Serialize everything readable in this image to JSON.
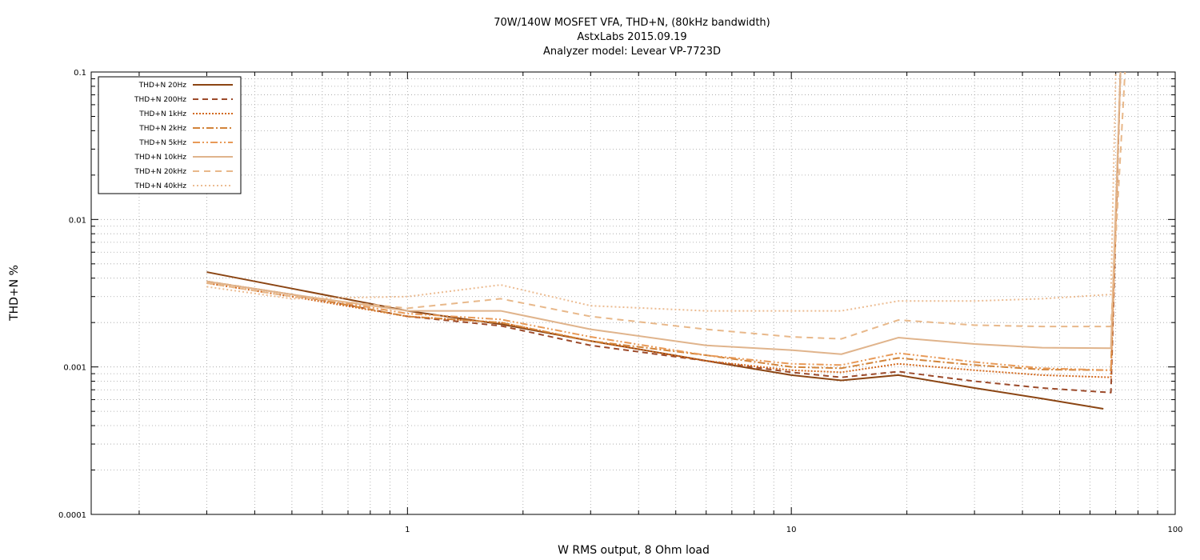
{
  "chart_data": {
    "type": "line",
    "title": [
      "70W/140W MOSFET VFA, THD+N, (80kHz bandwidth)",
      "AstxLabs 2015.09.19",
      "Analyzer model: Levear VP-7723D"
    ],
    "xlabel": "W RMS output, 8 Ohm load",
    "ylabel": "THD+N %",
    "xscale": "log",
    "yscale": "log",
    "xlim": [
      0.15,
      100
    ],
    "ylim": [
      0.0001,
      0.1
    ],
    "xticks": [
      {
        "v": 1,
        "label": "1"
      },
      {
        "v": 10,
        "label": "10"
      },
      {
        "v": 100,
        "label": "100"
      }
    ],
    "yticks": [
      {
        "v": 0.0001,
        "label": "0.0001"
      },
      {
        "v": 0.001,
        "label": "0.001"
      },
      {
        "v": 0.01,
        "label": "0.01"
      },
      {
        "v": 0.1,
        "label": "0.1"
      }
    ],
    "grid": true,
    "legend": "top-left",
    "series": [
      {
        "name": "THD+N 20Hz",
        "color": "#8b4513",
        "dash": "solid",
        "points": [
          [
            0.3,
            0.0044
          ],
          [
            0.5,
            0.0034
          ],
          [
            1,
            0.0024
          ],
          [
            1.75,
            0.00195
          ],
          [
            3,
            0.0015
          ],
          [
            6,
            0.0011
          ],
          [
            10,
            0.00088
          ],
          [
            13.5,
            0.00081
          ],
          [
            19,
            0.00088
          ],
          [
            30,
            0.00072
          ],
          [
            45,
            0.00061
          ],
          [
            65,
            0.00052
          ]
        ]
      },
      {
        "name": "THD+N 200Hz",
        "color": "#9c4a2a",
        "dash": "7,5",
        "points": [
          [
            0.3,
            0.0038
          ],
          [
            0.5,
            0.0031
          ],
          [
            1,
            0.0022
          ],
          [
            1.75,
            0.0019
          ],
          [
            3,
            0.0014
          ],
          [
            6,
            0.0011
          ],
          [
            10,
            0.00092
          ],
          [
            13.5,
            0.00085
          ],
          [
            19,
            0.00093
          ],
          [
            30,
            0.0008
          ],
          [
            45,
            0.00072
          ],
          [
            68,
            0.00067
          ],
          [
            72,
            0.1
          ]
        ]
      },
      {
        "name": "THD+N 1kHz",
        "color": "#d2691e",
        "dash": "2,2",
        "points": [
          [
            0.3,
            0.0037
          ],
          [
            0.5,
            0.003
          ],
          [
            1,
            0.0022
          ],
          [
            1.75,
            0.002
          ],
          [
            3,
            0.0015
          ],
          [
            6,
            0.0011
          ],
          [
            10,
            0.00095
          ],
          [
            13.5,
            0.00092
          ],
          [
            19,
            0.00105
          ],
          [
            30,
            0.00095
          ],
          [
            45,
            0.00088
          ],
          [
            68,
            0.00085
          ],
          [
            72,
            0.1
          ]
        ]
      },
      {
        "name": "THD+N 2kHz",
        "color": "#d2843a",
        "dash": "9,3,2,3",
        "points": [
          [
            0.3,
            0.0038
          ],
          [
            0.5,
            0.0031
          ],
          [
            1,
            0.0022
          ],
          [
            1.75,
            0.002
          ],
          [
            3,
            0.0015
          ],
          [
            6,
            0.0012
          ],
          [
            10,
            0.001
          ],
          [
            13.5,
            0.00098
          ],
          [
            19,
            0.00115
          ],
          [
            30,
            0.00103
          ],
          [
            45,
            0.00096
          ],
          [
            68,
            0.00095
          ],
          [
            72,
            0.1
          ]
        ]
      },
      {
        "name": "THD+N 5kHz",
        "color": "#e89a58",
        "dash": "9,3,2,3,2,3",
        "points": [
          [
            0.3,
            0.0038
          ],
          [
            0.5,
            0.0031
          ],
          [
            1,
            0.0023
          ],
          [
            1.75,
            0.0021
          ],
          [
            3,
            0.0016
          ],
          [
            6,
            0.0012
          ],
          [
            10,
            0.00105
          ],
          [
            13.5,
            0.00103
          ],
          [
            19,
            0.00124
          ],
          [
            30,
            0.00108
          ],
          [
            45,
            0.00098
          ],
          [
            68,
            0.00095
          ],
          [
            72,
            0.1
          ]
        ]
      },
      {
        "name": "THD+N 10kHz",
        "color": "#e0b48c",
        "dash": "solid",
        "points": [
          [
            0.3,
            0.0038
          ],
          [
            0.5,
            0.0031
          ],
          [
            1,
            0.0024
          ],
          [
            1.75,
            0.0024
          ],
          [
            3,
            0.0018
          ],
          [
            6,
            0.0014
          ],
          [
            10,
            0.0013
          ],
          [
            13.5,
            0.00122
          ],
          [
            19,
            0.00158
          ],
          [
            30,
            0.00143
          ],
          [
            45,
            0.00135
          ],
          [
            68,
            0.00134
          ],
          [
            72,
            0.1
          ]
        ]
      },
      {
        "name": "THD+N 20kHz",
        "color": "#e8b88a",
        "dash": "8,6",
        "points": [
          [
            0.3,
            0.0037
          ],
          [
            0.5,
            0.003
          ],
          [
            1,
            0.0025
          ],
          [
            1.75,
            0.0029
          ],
          [
            3,
            0.0022
          ],
          [
            6,
            0.0018
          ],
          [
            10,
            0.0016
          ],
          [
            13.5,
            0.00155
          ],
          [
            19,
            0.00208
          ],
          [
            30,
            0.00192
          ],
          [
            45,
            0.00188
          ],
          [
            68,
            0.00188
          ],
          [
            74,
            0.1
          ]
        ]
      },
      {
        "name": "THD+N 40kHz",
        "color": "#ecbc92",
        "dash": "2,3",
        "points": [
          [
            0.3,
            0.0035
          ],
          [
            0.5,
            0.0029
          ],
          [
            1,
            0.003
          ],
          [
            1.75,
            0.0036
          ],
          [
            3,
            0.0026
          ],
          [
            6,
            0.0024
          ],
          [
            10,
            0.0024
          ],
          [
            13.5,
            0.0024
          ],
          [
            19,
            0.0028
          ],
          [
            30,
            0.0028
          ],
          [
            45,
            0.0029
          ],
          [
            68,
            0.0031
          ],
          [
            70,
            0.1
          ]
        ]
      }
    ]
  }
}
